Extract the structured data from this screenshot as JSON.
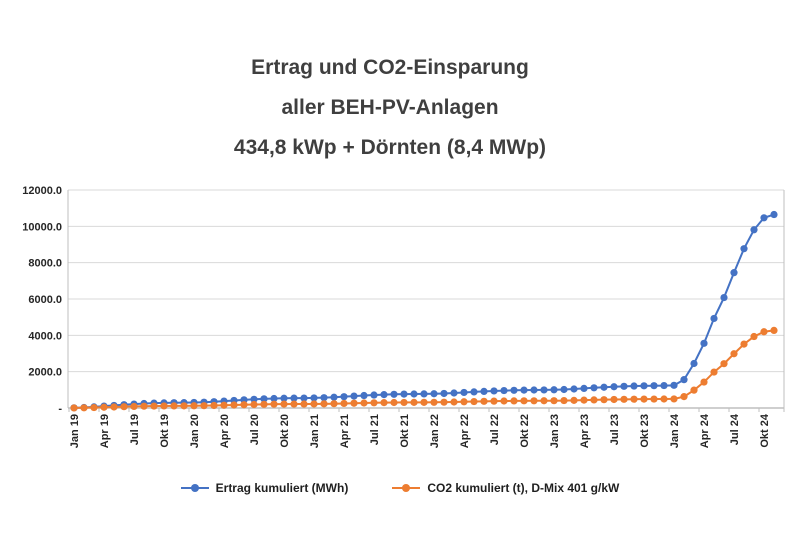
{
  "title": {
    "line1": "Ertrag und CO2-Einsparung",
    "line2": "aller BEH-PV-Anlagen",
    "line3": "434,8 kWp + Dörnten (8,4 MWp)"
  },
  "chart_data": {
    "type": "line",
    "title": "Ertrag und CO2-Einsparung aller BEH-PV-Anlagen 434,8 kWp + Dörnten (8,4 MWp)",
    "xlabel": "",
    "ylabel": "",
    "ylim": [
      0,
      12000
    ],
    "y_tick_step": 2000,
    "y_tick_labels": [
      "12000.0",
      "10000.0",
      "8000.0",
      "6000.0",
      "4000.0",
      "2000.0",
      "-"
    ],
    "grid": true,
    "legend_position": "bottom",
    "x": [
      "Jan 19",
      "Feb 19",
      "Mär 19",
      "Apr 19",
      "Mai 19",
      "Jun 19",
      "Jul 19",
      "Aug 19",
      "Sep 19",
      "Okt 19",
      "Nov 19",
      "Dez 19",
      "Jan 20",
      "Feb 20",
      "Mär 20",
      "Apr 20",
      "Mai 20",
      "Jun 20",
      "Jul 20",
      "Aug 20",
      "Sep 20",
      "Okt 20",
      "Nov 20",
      "Dez 20",
      "Jan 21",
      "Feb 21",
      "Mär 21",
      "Apr 21",
      "Mai 21",
      "Jun 21",
      "Jul 21",
      "Aug 21",
      "Sep 21",
      "Okt 21",
      "Nov 21",
      "Dez 21",
      "Jan 22",
      "Feb 22",
      "Mär 22",
      "Apr 22",
      "Mai 22",
      "Jun 22",
      "Jul 22",
      "Aug 22",
      "Sep 22",
      "Okt 22",
      "Nov 22",
      "Dez 22",
      "Jan 23",
      "Feb 23",
      "Mär 23",
      "Apr 23",
      "Mai 23",
      "Jun 23",
      "Jul 23",
      "Aug 23",
      "Sep 23",
      "Okt 23",
      "Nov 23",
      "Dez 23",
      "Jan 24",
      "Feb 24",
      "Mär 24",
      "Apr 24",
      "Mai 24",
      "Jun 24",
      "Jul 24",
      "Aug 24",
      "Sep 24",
      "Okt 24",
      "Nov 24"
    ],
    "x_tick_labels": [
      "Jan 19",
      "Apr 19",
      "Jul 19",
      "Okt 19",
      "Jan 20",
      "Apr 20",
      "Jul 20",
      "Okt 20",
      "Jan 21",
      "Apr 21",
      "Jul 21",
      "Okt 21",
      "Jan 22",
      "Apr 22",
      "Jul 22",
      "Okt 22",
      "Jan 23",
      "Apr 23",
      "Jul 23",
      "Okt 23",
      "Jan 24",
      "Apr 24",
      "Jul 24",
      "Okt 24"
    ],
    "x_tick_interval_months": 3,
    "series": [
      {
        "name": "Ertrag kumuliert (MWh)",
        "color": "#4472C4",
        "values": [
          10,
          28,
          62,
          103,
          142,
          180,
          216,
          246,
          268,
          282,
          290,
          296,
          304,
          319,
          346,
          381,
          416,
          449,
          479,
          504,
          523,
          535,
          542,
          547,
          554,
          568,
          592,
          624,
          657,
          687,
          714,
          737,
          754,
          765,
          771,
          776,
          784,
          800,
          826,
          856,
          886,
          914,
          939,
          959,
          974,
          984,
          990,
          995,
          1003,
          1019,
          1046,
          1079,
          1112,
          1143,
          1170,
          1193,
          1210,
          1221,
          1228,
          1234,
          1248,
          1560,
          2450,
          3560,
          4930,
          6080,
          7450,
          8770,
          9810,
          10470,
          10650
        ]
      },
      {
        "name": "CO2 kumuliert (t), D-Mix 401 g/kW",
        "color": "#ED7D31",
        "values": [
          4,
          11,
          25,
          41,
          57,
          72,
          87,
          99,
          107,
          113,
          116,
          119,
          122,
          128,
          139,
          153,
          167,
          180,
          192,
          202,
          210,
          215,
          217,
          219,
          222,
          228,
          237,
          250,
          263,
          275,
          286,
          296,
          302,
          307,
          309,
          311,
          314,
          321,
          331,
          343,
          355,
          367,
          377,
          385,
          391,
          395,
          397,
          399,
          402,
          409,
          419,
          433,
          446,
          458,
          469,
          478,
          485,
          490,
          492,
          495,
          500,
          626,
          982,
          1428,
          1977,
          2438,
          2987,
          3517,
          3934,
          4198,
          4271
        ]
      }
    ],
    "style": {
      "gridline_color": "#d9d9d9",
      "axis_color": "#bfbfbf",
      "tick_label_color": "#262626",
      "marker_radius": 3.6,
      "line_width": 2
    }
  }
}
